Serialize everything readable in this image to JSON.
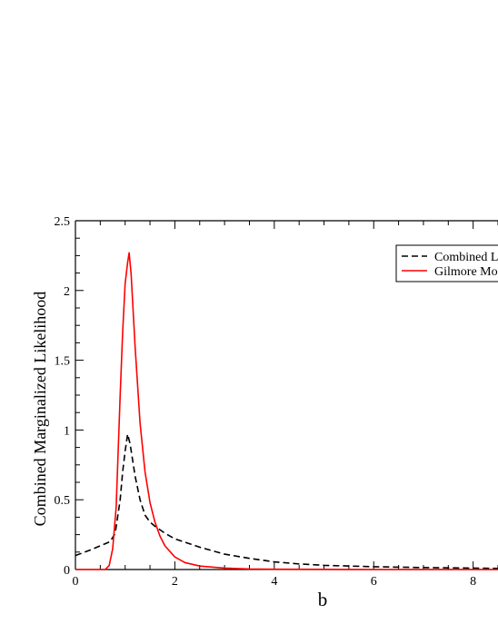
{
  "chart_data": {
    "type": "line",
    "xlabel": "b",
    "ylabel": "Combined Marginalized Likelihood",
    "xlim": [
      0,
      8.5
    ],
    "ylim": [
      0,
      2.5
    ],
    "x_ticks": [
      0,
      2,
      4,
      6,
      8
    ],
    "x_tick_labels": [
      "0",
      "2",
      "4",
      "6",
      "8"
    ],
    "y_ticks": [
      0,
      0.5,
      1,
      1.5,
      2,
      2.5
    ],
    "y_tick_labels": [
      "0",
      "0.5",
      "1",
      "1.5",
      "2",
      "2.5"
    ],
    "grid": false,
    "legend_position": "top-right",
    "series": [
      {
        "name": "Combined L",
        "color": "#000000",
        "dash": "dashed",
        "x": [
          0,
          0.3,
          0.5,
          0.7,
          0.8,
          0.9,
          0.95,
          1.0,
          1.05,
          1.1,
          1.2,
          1.3,
          1.4,
          1.5,
          1.6,
          1.8,
          2.0,
          2.5,
          3.0,
          3.5,
          4.0,
          4.5,
          5.0,
          6.0,
          7.0,
          8.0,
          8.5
        ],
        "values": [
          0.1,
          0.14,
          0.17,
          0.2,
          0.26,
          0.5,
          0.7,
          0.85,
          0.97,
          0.9,
          0.67,
          0.5,
          0.39,
          0.34,
          0.31,
          0.26,
          0.22,
          0.16,
          0.11,
          0.08,
          0.055,
          0.04,
          0.03,
          0.02,
          0.014,
          0.01,
          0.008
        ]
      },
      {
        "name": "Gilmore Mo",
        "color": "#ff0000",
        "dash": "solid",
        "x": [
          0,
          0.6,
          0.68,
          0.75,
          0.82,
          0.9,
          0.95,
          1.0,
          1.05,
          1.08,
          1.12,
          1.2,
          1.3,
          1.4,
          1.5,
          1.6,
          1.7,
          1.8,
          2.0,
          2.2,
          2.5,
          3.0,
          3.5,
          4.0,
          5.0,
          6.0,
          7.0,
          8.0,
          8.5
        ],
        "values": [
          0,
          0,
          0.03,
          0.15,
          0.45,
          1.25,
          1.7,
          2.05,
          2.2,
          2.27,
          2.12,
          1.6,
          1.05,
          0.7,
          0.48,
          0.34,
          0.24,
          0.17,
          0.09,
          0.05,
          0.025,
          0.01,
          0.004,
          0.002,
          0.001,
          0,
          0,
          0,
          0
        ]
      }
    ]
  }
}
